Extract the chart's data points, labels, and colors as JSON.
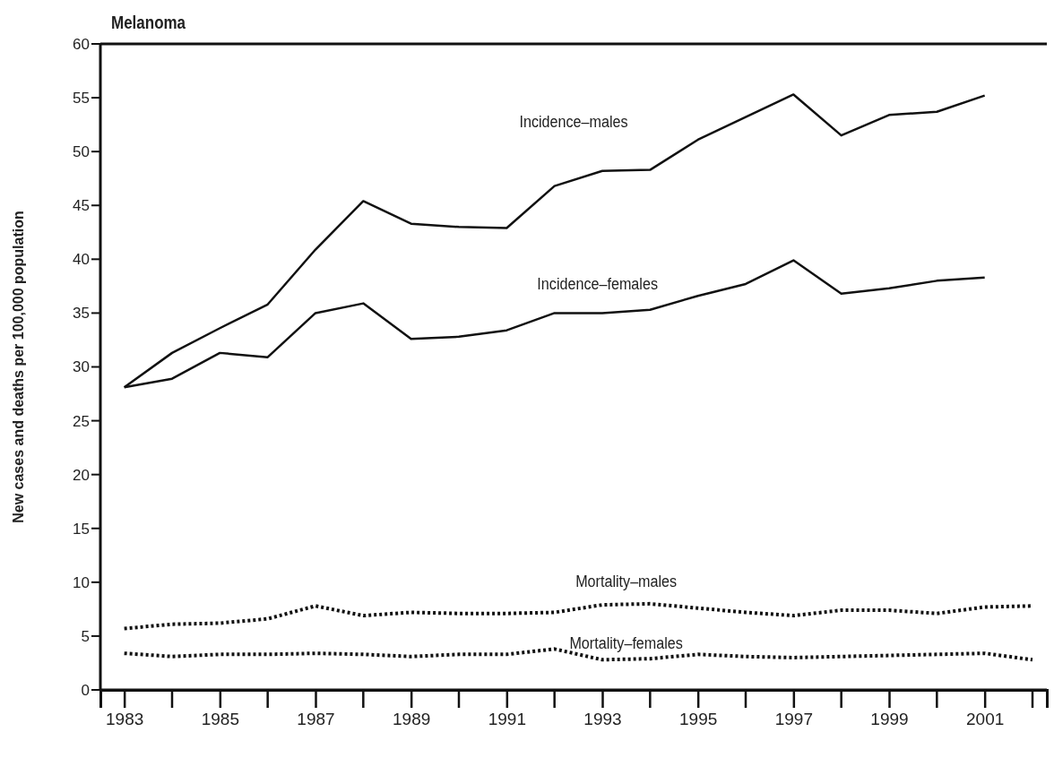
{
  "chart_data": {
    "type": "line",
    "title": "Melanoma",
    "ylabel": "New cases and deaths per 100,000 population",
    "x": [
      1983,
      1984,
      1985,
      1986,
      1987,
      1988,
      1989,
      1990,
      1991,
      1992,
      1993,
      1994,
      1995,
      1996,
      1997,
      1998,
      1999,
      2000,
      2001,
      2002
    ],
    "xlim": [
      1982.5,
      2002.3
    ],
    "xticks": [
      1983,
      1985,
      1987,
      1989,
      1991,
      1993,
      1995,
      1997,
      1999,
      2001
    ],
    "ylim": [
      0,
      60
    ],
    "yticks": [
      0,
      5,
      10,
      15,
      20,
      25,
      30,
      35,
      40,
      45,
      50,
      55,
      60
    ],
    "grid": false,
    "marker": "none",
    "series": [
      {
        "name": "Incidence–males",
        "color": "#111111",
        "line_style": "solid",
        "values": [
          28.1,
          31.3,
          33.6,
          35.8,
          40.9,
          45.4,
          43.3,
          43.0,
          42.9,
          46.8,
          48.2,
          48.3,
          51.1,
          53.2,
          55.3,
          51.5,
          53.4,
          53.7,
          55.2,
          null
        ]
      },
      {
        "name": "Incidence–females",
        "color": "#111111",
        "line_style": "solid",
        "values": [
          28.1,
          28.9,
          31.3,
          30.9,
          35.0,
          35.9,
          32.6,
          32.8,
          33.4,
          35.0,
          35.0,
          35.3,
          36.6,
          37.7,
          39.9,
          36.8,
          37.3,
          38.0,
          38.3,
          null
        ]
      },
      {
        "name": "Mortality–males",
        "color": "#111111",
        "line_style": "dotted",
        "values": [
          5.7,
          6.1,
          6.2,
          6.6,
          7.8,
          6.9,
          7.2,
          7.1,
          7.1,
          7.2,
          7.9,
          8.0,
          7.6,
          7.2,
          6.9,
          7.4,
          7.4,
          7.1,
          7.7,
          7.8
        ]
      },
      {
        "name": "Mortality–females",
        "color": "#111111",
        "line_style": "dotted",
        "values": [
          3.4,
          3.1,
          3.3,
          3.3,
          3.4,
          3.3,
          3.1,
          3.3,
          3.3,
          3.8,
          2.8,
          2.9,
          3.3,
          3.1,
          3.0,
          3.1,
          3.2,
          3.3,
          3.4,
          2.8
        ]
      }
    ]
  }
}
